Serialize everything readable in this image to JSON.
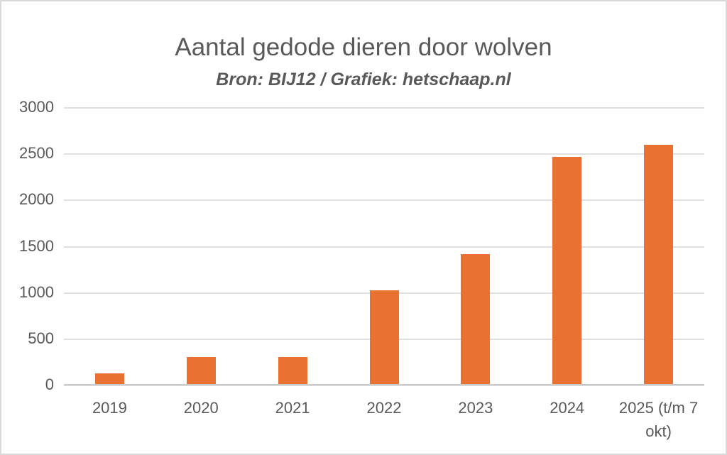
{
  "chart_data": {
    "type": "bar",
    "title": "Aantal gedode dieren door wolven",
    "subtitle": "Bron: BIJ12 / Grafiek: hetschaap.nl",
    "categories": [
      "2019",
      "2020",
      "2021",
      "2022",
      "2023",
      "2024",
      "2025 (t/m 7 okt)"
    ],
    "values": [
      120,
      300,
      300,
      1020,
      1410,
      2460,
      2590
    ],
    "xlabel": "",
    "ylabel": "",
    "ylim": [
      0,
      3000
    ],
    "yticks": [
      0,
      500,
      1000,
      1500,
      2000,
      2500,
      3000
    ],
    "grid": true,
    "legend": false,
    "colors": {
      "bar": "#e97132",
      "gridline": "#e0e0e0",
      "axis_line": "#c9c9c9",
      "text": "#595959",
      "frame_border": "#d9d9d9",
      "background": "#ffffff"
    }
  }
}
